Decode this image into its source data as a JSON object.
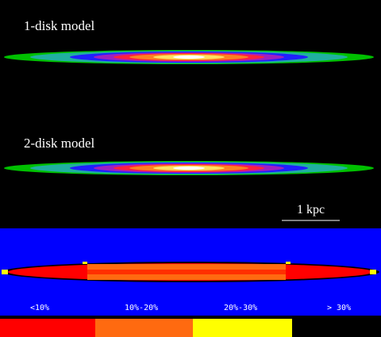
{
  "panels": [
    {
      "label": "1-disk model"
    },
    {
      "label": "2-disk model"
    }
  ],
  "scale_bar": {
    "label": "1 kpc"
  },
  "legend": [
    {
      "label": "<10%",
      "color": "#ff0000"
    },
    {
      "label": "10%-20%",
      "color": "#ff6a10"
    },
    {
      "label": "20%-30%",
      "color": "#ffff00"
    },
    {
      "label": "> 30%",
      "color": "#000000"
    }
  ]
}
